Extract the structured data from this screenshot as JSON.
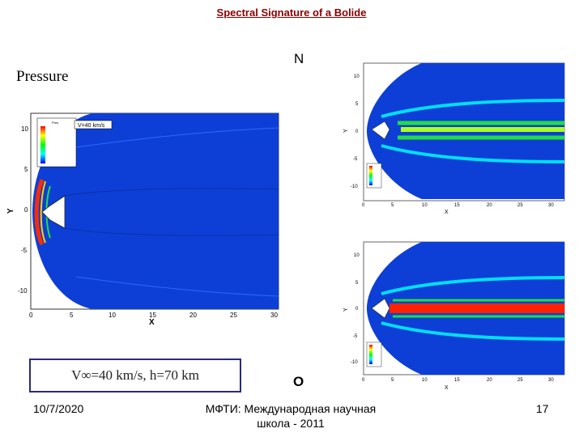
{
  "title": "Spectral Signature of a Bolide",
  "label_n": "N",
  "label_o": "O",
  "pressure_label": "Pressure",
  "velocity_box": "V∞=40 km/s,   h=70 km",
  "footer": {
    "date": "10/7/2020",
    "line1": "МФТИ: Международная научная",
    "line2": "школа - 2011",
    "page": "17"
  },
  "main_plot": {
    "legend_title": "Pres",
    "annotation": "V=40 km/s",
    "x_label": "X",
    "y_label": "Y",
    "x_ticks": [
      "0",
      "5",
      "10",
      "15",
      "20",
      "25",
      "30"
    ],
    "y_ticks": [
      "10",
      "5",
      "0",
      "-5",
      "-10"
    ]
  },
  "plot_n": {
    "x_label": "X",
    "y_label": "Y",
    "x_ticks": [
      "0",
      "5",
      "10",
      "15",
      "20",
      "25",
      "30"
    ],
    "y_ticks": [
      "10",
      "5",
      "0",
      "-5",
      "-10"
    ]
  },
  "plot_o": {
    "x_label": "X",
    "y_label": "Y",
    "x_ticks": [
      "0",
      "5",
      "10",
      "15",
      "20",
      "25",
      "30"
    ],
    "y_ticks": [
      "10",
      "5",
      "0",
      "-5",
      "-10"
    ]
  },
  "colors": {
    "field": "#0d3fd6",
    "shock": "#0088ff",
    "hot": "#ff2200",
    "mid": "#22dd44",
    "title": "#8b0000"
  }
}
